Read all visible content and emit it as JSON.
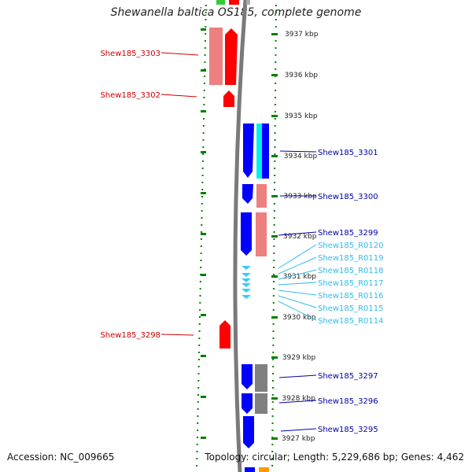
{
  "title": "Shewanella baltica OS185, complete genome",
  "accession": "Accession: NC_009665",
  "topology": "Topology: circular; Length: 5,229,686 bp; Genes: 4,462",
  "colors": {
    "forward_cds": "#ff0000",
    "forward_cds_light": "#ee7f7f",
    "reverse_cds": "#0000ff",
    "reverse_rna": "#33ccff",
    "cyan_bar": "#00eeee",
    "pseudo": "#808080",
    "ruler": "#008000",
    "red_label": "#cc0000",
    "blue_label": "#0000aa",
    "cyan_label": "#33bbee"
  },
  "ruler_labels": [
    "3937 kbp",
    "3936 kbp",
    "3935 kbp",
    "3934 kbp",
    "3933 kbp",
    "3932 kbp",
    "3931 kbp",
    "3930 kbp",
    "3929 kbp",
    "3928 kbp",
    "3927 kbp"
  ],
  "left_genes": [
    "Shew185_3303",
    "Shew185_3302",
    "Shew185_3298"
  ],
  "right_genes": [
    "Shew185_3301",
    "Shew185_3300",
    "Shew185_3299",
    "Shew185_R0120",
    "Shew185_R0119",
    "Shew185_R0118",
    "Shew185_R0117",
    "Shew185_R0116",
    "Shew185_R0115",
    "Shew185_R0114",
    "Shew185_3297",
    "Shew185_3296",
    "Shew185_3295"
  ]
}
